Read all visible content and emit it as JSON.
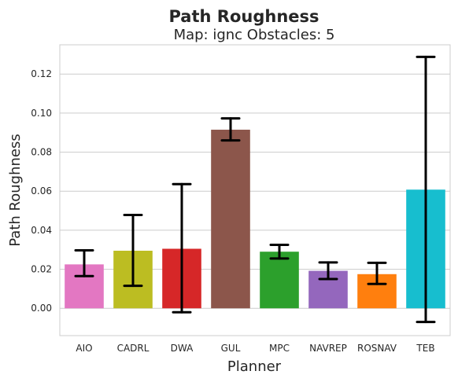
{
  "chart_data": {
    "type": "bar",
    "title": "Path Roughness",
    "subtitle": "Map: ignc Obstacles: 5",
    "xlabel": "Planner",
    "ylabel": "Path Roughness",
    "ylim": [
      -0.014,
      0.135
    ],
    "yticks": [
      0.0,
      0.02,
      0.04,
      0.06,
      0.08,
      0.1,
      0.12
    ],
    "ytick_labels": [
      "0.00",
      "0.02",
      "0.04",
      "0.06",
      "0.08",
      "0.10",
      "0.12"
    ],
    "grid": true,
    "categories": [
      "AIO",
      "CADRL",
      "DWA",
      "GUL",
      "MPC",
      "NAVREP",
      "ROSNAV",
      "TEB"
    ],
    "values": [
      0.0225,
      0.0295,
      0.0305,
      0.0915,
      0.029,
      0.0192,
      0.0175,
      0.0608
    ],
    "error_low": [
      0.0165,
      0.0115,
      -0.002,
      0.086,
      0.0255,
      0.015,
      0.0125,
      -0.007
    ],
    "error_high": [
      0.0297,
      0.0478,
      0.0636,
      0.0973,
      0.0325,
      0.0235,
      0.0233,
      0.1288
    ],
    "colors": [
      "#e377c2",
      "#bcbd22",
      "#d62728",
      "#8c564b",
      "#2ca02c",
      "#9467bd",
      "#ff7f0e",
      "#17becf"
    ]
  }
}
